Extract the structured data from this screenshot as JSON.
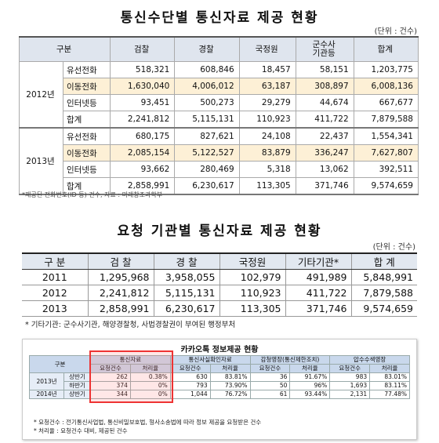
{
  "section1": {
    "title": "통신수단별 통신자료 제공 현황",
    "unit": "(단위 : 건수)",
    "header": [
      "구분",
      "검찰",
      "경찰",
      "국정원",
      "군수사\n기관등",
      "합계"
    ],
    "groups": [
      {
        "year": "2012년",
        "rows": [
          {
            "label": "유선전화",
            "values": [
              "518,321",
              "608,846",
              "18,457",
              "58,151",
              "1,203,775"
            ]
          },
          {
            "label": "이동전화",
            "values": [
              "1,630,040",
              "4,006,012",
              "63,187",
              "308,897",
              "6,008,136"
            ]
          },
          {
            "label": "인터넷등",
            "values": [
              "93,451",
              "500,273",
              "29,279",
              "44,674",
              "667,677"
            ]
          },
          {
            "label": "합계",
            "values": [
              "2,241,812",
              "5,115,131",
              "110,923",
              "411,722",
              "7,879,588"
            ]
          }
        ]
      },
      {
        "year": "2013년",
        "rows": [
          {
            "label": "유선전화",
            "values": [
              "680,175",
              "827,621",
              "24,108",
              "22,437",
              "1,554,341"
            ]
          },
          {
            "label": "이동전화",
            "values": [
              "2,085,154",
              "5,122,527",
              "83,879",
              "336,247",
              "7,627,807"
            ]
          },
          {
            "label": "인터넷등",
            "values": [
              "93,662",
              "280,469",
              "5,318",
              "13,062",
              "392,511"
            ]
          },
          {
            "label": "합계",
            "values": [
              "2,858,991",
              "6,230,617",
              "113,305",
              "371,746",
              "9,574,659"
            ]
          }
        ]
      }
    ],
    "note": "*제공된 전화번호(ID 등) 건수, 자료 : 미래창조과학부"
  },
  "section2": {
    "title": "요청 기관별 통신자료 제공 현황",
    "unit": "(단위 : 건수)",
    "header": [
      "구 분",
      "검 찰",
      "경 찰",
      "국정원",
      "기타기관*",
      "합 계"
    ],
    "rows": [
      [
        "2011",
        "1,295,968",
        "3,958,055",
        "102,979",
        "491,989",
        "5,848,991"
      ],
      [
        "2012",
        "2,241,812",
        "5,115,131",
        "110,923",
        "411,722",
        "7,879,588"
      ],
      [
        "2013",
        "2,858,991",
        "6,230,617",
        "113,305",
        "371,746",
        "9,574,659"
      ]
    ],
    "note": "* 기타기관: 군수사기관, 해양경찰청, 사법경찰권이 부여된 행정부처"
  },
  "section3": {
    "title": "카카오톡 정보제공 현황",
    "header": [
      "구분",
      "통신자료",
      "통신사실확인자료",
      "감청영장(통신제한조치)",
      "압수수색영장"
    ],
    "subheader": [
      "요청건수",
      "처리율"
    ],
    "groups": [
      {
        "year": "2013년",
        "rows": [
          {
            "half": "상반기",
            "values": [
              "262",
              "0.38%",
              "630",
              "83.81%",
              "36",
              "91.67%",
              "983",
              "83.01%"
            ]
          },
          {
            "half": "하반기",
            "values": [
              "374",
              "0%",
              "793",
              "73.90%",
              "50",
              "96%",
              "1,693",
              "83.11%"
            ]
          }
        ]
      },
      {
        "year": "2014년",
        "rows": [
          {
            "half": "상반기",
            "values": [
              "344",
              "0%",
              "1,044",
              "76.72%",
              "61",
              "93.44%",
              "2,131",
              "77.48%"
            ]
          }
        ]
      }
    ],
    "notes": [
      "* 요청건수 : 전기통신사업법, 통신비밀보호법, 형사소송법에 따라 정보 제공을 요청받은 건수",
      "* 처리율 : 요청건수 대비, 제공된 건수"
    ]
  }
}
